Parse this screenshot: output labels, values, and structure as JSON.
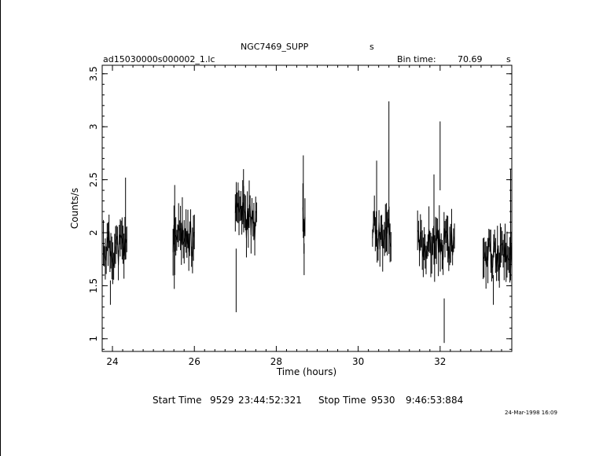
{
  "header": {
    "object": "NGC7469_SUPP",
    "object_unit": "s",
    "filename": "ad15030000s000002_1.lc",
    "bin_label": "Bin time:",
    "bin_value": "70.69",
    "bin_unit": "s"
  },
  "footer": {
    "start_label": "Start Time",
    "start_day": "9529",
    "start_time": "23:44:52:321",
    "stop_label": "Stop Time",
    "stop_day": "9530",
    "stop_time": "9:46:53:884",
    "date_stamp": "24-Mar-1998 16:09"
  },
  "chart_data": {
    "type": "line",
    "title": "NGC7469_SUPP",
    "xlabel": "Time (hours)",
    "ylabel": "Counts/s",
    "xlim": [
      23.75,
      33.75
    ],
    "ylim": [
      0.88,
      3.58
    ],
    "xticks": [
      "24",
      "26",
      "28",
      "30",
      "32"
    ],
    "xtick_values": [
      24,
      26,
      28,
      30,
      32
    ],
    "yticks": [
      "1",
      "1.5",
      "2",
      "2.5",
      "3",
      "3.5"
    ],
    "ytick_values": [
      1,
      1.5,
      2,
      2.5,
      3,
      3.5
    ],
    "grid": false,
    "segments": [
      {
        "x_start": 23.78,
        "x_end": 24.35,
        "mean": 1.85,
        "amp": 0.18,
        "seed": 11,
        "spikes": [
          [
            24.32,
            1.75,
            2.52
          ],
          [
            23.95,
            1.55,
            1.32
          ]
        ]
      },
      {
        "x_start": 25.48,
        "x_end": 26.0,
        "mean": 1.95,
        "amp": 0.18,
        "seed": 23,
        "spikes": [
          [
            25.52,
            1.6,
            2.45
          ],
          [
            25.51,
            1.9,
            1.47
          ]
        ]
      },
      {
        "x_start": 27.0,
        "x_end": 27.52,
        "mean": 2.12,
        "amp": 0.18,
        "seed": 37,
        "spikes": [
          [
            27.02,
            1.85,
            1.25
          ],
          [
            27.2,
            2.1,
            2.6
          ]
        ]
      },
      {
        "x_start": 28.65,
        "x_end": 28.7,
        "mean": 2.1,
        "amp": 0.2,
        "seed": 41,
        "spikes": [
          [
            28.66,
            1.95,
            2.73
          ],
          [
            28.68,
            1.9,
            1.6
          ]
        ]
      },
      {
        "x_start": 30.35,
        "x_end": 30.8,
        "mean": 2.02,
        "amp": 0.2,
        "seed": 53,
        "spikes": [
          [
            30.75,
            1.8,
            3.24
          ],
          [
            30.45,
            1.9,
            2.68
          ]
        ]
      },
      {
        "x_start": 31.45,
        "x_end": 32.35,
        "mean": 1.9,
        "amp": 0.16,
        "seed": 67,
        "spikes": [
          [
            32.0,
            2.4,
            3.05
          ],
          [
            32.1,
            1.38,
            0.96
          ],
          [
            31.85,
            1.7,
            2.55
          ]
        ]
      },
      {
        "x_start": 33.05,
        "x_end": 33.75,
        "mean": 1.8,
        "amp": 0.16,
        "seed": 79,
        "spikes": [
          [
            33.72,
            1.55,
            2.6
          ],
          [
            33.3,
            1.6,
            1.32
          ]
        ]
      }
    ]
  }
}
